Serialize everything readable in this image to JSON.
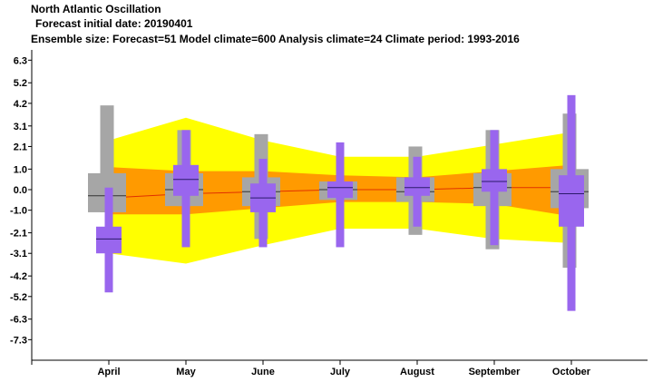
{
  "header": {
    "title": "North Atlantic Oscillation",
    "initial_date": "Forecast initial date: 20190401",
    "ensemble_info": "Ensemble size: Forecast=51 Model climate=600 Analysis climate=24   Climate period: 1993-2016"
  },
  "colors": {
    "outer_band": "#ffff00",
    "inner_band": "#ff9a00",
    "median_line": "#e03000",
    "climate_box": "#a6a6a6",
    "forecast_box": "#9966ee",
    "median_tick": "#2a1a6a"
  },
  "chart_data": {
    "type": "box",
    "title": "North Atlantic Oscillation",
    "categories": [
      "April",
      "May",
      "June",
      "July",
      "August",
      "September",
      "October"
    ],
    "ylim": [
      -8.3,
      6.8
    ],
    "y_ticks": [
      "6.3",
      "5.2",
      "4.2",
      "3.1",
      "2.1",
      "1.0",
      "0.0",
      "-1.0",
      "-2.1",
      "-3.1",
      "-4.2",
      "-5.2",
      "-6.3",
      "-7.3"
    ],
    "y_tick_values": [
      6.3,
      5.2,
      4.2,
      3.1,
      2.1,
      1.0,
      0.0,
      -1.0,
      -2.1,
      -3.1,
      -4.2,
      -5.2,
      -6.3,
      -7.3
    ],
    "analysis_climate_band": {
      "outer_upper": [
        2.4,
        3.5,
        2.4,
        1.6,
        1.6,
        2.2,
        2.8
      ],
      "outer_lower": [
        -3.1,
        -3.6,
        -2.7,
        -1.9,
        -1.9,
        -2.4,
        -2.6
      ],
      "inner_upper": [
        1.1,
        0.9,
        0.9,
        0.7,
        0.6,
        0.9,
        1.2
      ],
      "inner_lower": [
        -1.2,
        -1.2,
        -0.9,
        -0.6,
        -0.6,
        -0.7,
        -1.3
      ],
      "median": [
        -0.4,
        -0.2,
        -0.1,
        0.0,
        0.0,
        0.1,
        0.1
      ]
    },
    "model_climate": [
      {
        "month": "April",
        "min": -1.1,
        "q1": -1.1,
        "median": -0.3,
        "q3": 0.8,
        "max": 4.1
      },
      {
        "month": "May",
        "min": -0.8,
        "q1": -0.8,
        "median": 0.0,
        "q3": 0.8,
        "max": 2.9
      },
      {
        "month": "June",
        "min": -2.4,
        "q1": -0.8,
        "median": -0.1,
        "q3": 0.6,
        "max": 2.7
      },
      {
        "month": "July",
        "min": -0.5,
        "q1": -0.5,
        "median": 0.0,
        "q3": 0.4,
        "max": 0.4
      },
      {
        "month": "August",
        "min": -2.2,
        "q1": -0.6,
        "median": -0.1,
        "q3": 0.6,
        "max": 2.1
      },
      {
        "month": "September",
        "min": -2.9,
        "q1": -0.8,
        "median": 0.1,
        "q3": 0.8,
        "max": 2.9
      },
      {
        "month": "October",
        "min": -3.8,
        "q1": -0.9,
        "median": -0.1,
        "q3": 1.0,
        "max": 3.7
      }
    ],
    "forecast": [
      {
        "month": "April",
        "min": -5.0,
        "q1": -3.1,
        "median": -2.4,
        "q3": -1.8,
        "max": 0.1
      },
      {
        "month": "May",
        "min": -2.8,
        "q1": -0.3,
        "median": 0.5,
        "q3": 1.2,
        "max": 2.9
      },
      {
        "month": "June",
        "min": -2.8,
        "q1": -1.1,
        "median": -0.4,
        "q3": 0.3,
        "max": 1.5
      },
      {
        "month": "July",
        "min": -2.8,
        "q1": -0.4,
        "median": 0.1,
        "q3": 0.4,
        "max": 2.3
      },
      {
        "month": "August",
        "min": -1.8,
        "q1": -0.3,
        "median": 0.1,
        "q3": 0.6,
        "max": 1.6
      },
      {
        "month": "September",
        "min": -2.7,
        "q1": -0.1,
        "median": 0.4,
        "q3": 1.0,
        "max": 2.9
      },
      {
        "month": "October",
        "min": -5.9,
        "q1": -1.8,
        "median": -0.2,
        "q3": 0.7,
        "max": 4.6
      }
    ]
  }
}
